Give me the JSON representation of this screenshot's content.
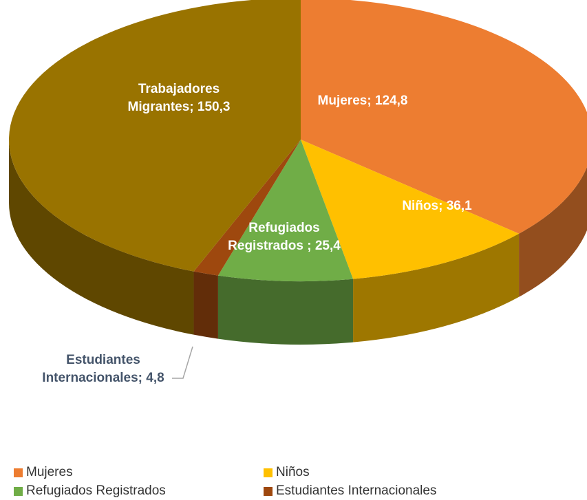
{
  "chart_data": {
    "type": "pie3d",
    "categories": [
      "Mujeres",
      "Niños",
      "Refugiados Registrados",
      "Estudiantes Internacionales",
      "Trabajadores Migrantes"
    ],
    "values": [
      124.8,
      36.1,
      25.4,
      4.8,
      150.3
    ],
    "value_labels": [
      "Mujeres; 124,8",
      "Niños; 36,1",
      "Refugiados Registrados ; 25,4",
      "Estudiantes Internacionales; 4,8",
      "Trabajadores Migrantes; 150,3"
    ],
    "colors": [
      "#ED7D31",
      "#FFC000",
      "#70AD47",
      "#9E480E",
      "#997300"
    ],
    "legend": "bottom"
  }
}
